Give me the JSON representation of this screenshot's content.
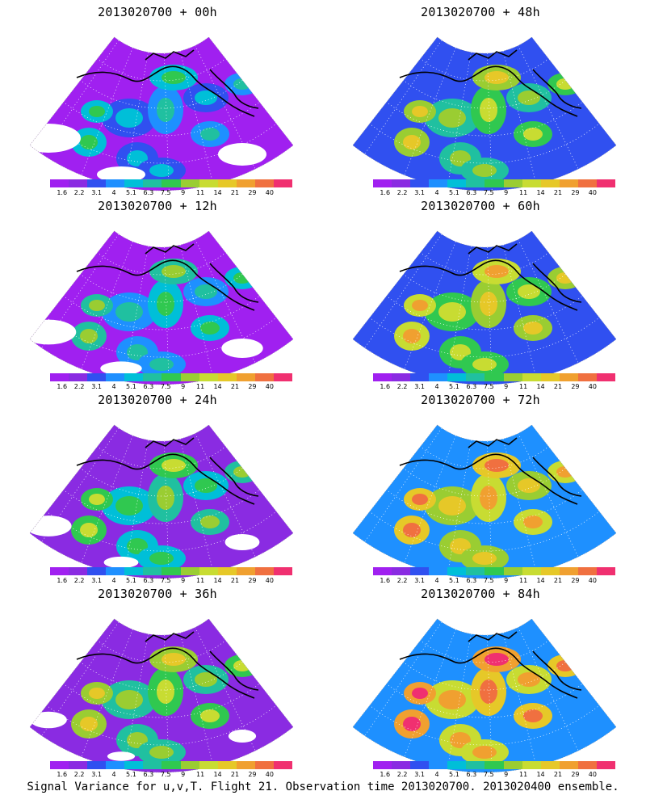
{
  "panels": [
    {
      "title": "2013020700 + 00h",
      "lead_hours": 0
    },
    {
      "title": "2013020700 + 48h",
      "lead_hours": 48
    },
    {
      "title": "2013020700 + 12h",
      "lead_hours": 12
    },
    {
      "title": "2013020700 + 60h",
      "lead_hours": 60
    },
    {
      "title": "2013020700 + 24h",
      "lead_hours": 24
    },
    {
      "title": "2013020700 + 72h",
      "lead_hours": 72
    },
    {
      "title": "2013020700 + 36h",
      "lead_hours": 36
    },
    {
      "title": "2013020700 + 84h",
      "lead_hours": 84
    }
  ],
  "colorbar": {
    "levels": [
      "1.6",
      "2.2",
      "3.1",
      "4",
      "5.1",
      "6.3",
      "7.5",
      "9",
      "11",
      "14",
      "21",
      "29",
      "40"
    ],
    "colors": [
      "#a020f0",
      "#8a2be2",
      "#3050f0",
      "#1e90ff",
      "#00bfd8",
      "#20c0a0",
      "#30c850",
      "#9acd32",
      "#c8dc32",
      "#e6c828",
      "#f0a030",
      "#f07040",
      "#f03070"
    ]
  },
  "footer": "Signal Variance for u,v,T. Flight 21. Observation time 2013020700. 2013020400 ensemble."
}
